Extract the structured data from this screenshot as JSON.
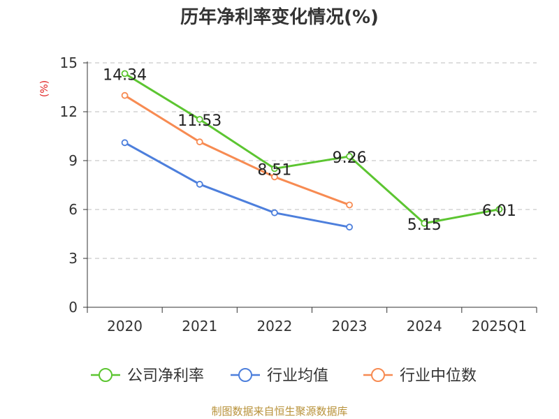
{
  "chart_data": {
    "type": "line",
    "title": "历年净利率变化情况(%)",
    "ylabel": "(%)",
    "xlabel": "",
    "categories": [
      "2020",
      "2021",
      "2022",
      "2023",
      "2024",
      "2025Q1"
    ],
    "ylim": [
      0,
      15
    ],
    "yticks": [
      0,
      3,
      6,
      9,
      12,
      15
    ],
    "grid": true,
    "legend_position": "bottom",
    "series": [
      {
        "name": "公司净利率",
        "color": "#5cc531",
        "values": [
          14.34,
          11.53,
          8.51,
          9.26,
          5.15,
          6.01
        ],
        "labels": [
          "14.34",
          "11.53",
          "8.51",
          "9.26",
          "5.15",
          "6.01"
        ]
      },
      {
        "name": "行业均值",
        "color": "#4d7fdc",
        "values": [
          10.1,
          7.55,
          5.8,
          4.92,
          null,
          null
        ]
      },
      {
        "name": "行业中位数",
        "color": "#f78b52",
        "values": [
          13.0,
          10.15,
          8.0,
          6.28,
          null,
          null
        ]
      }
    ]
  },
  "footer": {
    "source": "制图数据来自恒生聚源数据库"
  }
}
